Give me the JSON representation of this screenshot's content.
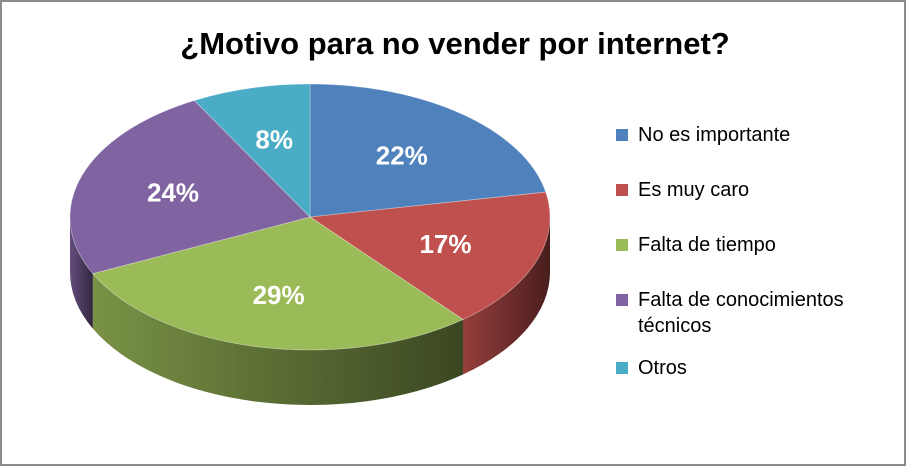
{
  "chart_data": {
    "type": "pie",
    "title": "¿Motivo para no vender por internet?",
    "categories": [
      "No es importante",
      "Es muy caro",
      "Falta de tiempo",
      "Falta de conocimientos técnicos",
      "Otros"
    ],
    "values": [
      22,
      17,
      29,
      24,
      8
    ],
    "value_labels": [
      "22%",
      "17%",
      "29%",
      "24%",
      "8%"
    ],
    "colors": [
      "#4f81bd",
      "#c0504d",
      "#9bbb59",
      "#8064a2",
      "#4bacc6"
    ],
    "legend_position": "right",
    "style": "3d"
  }
}
